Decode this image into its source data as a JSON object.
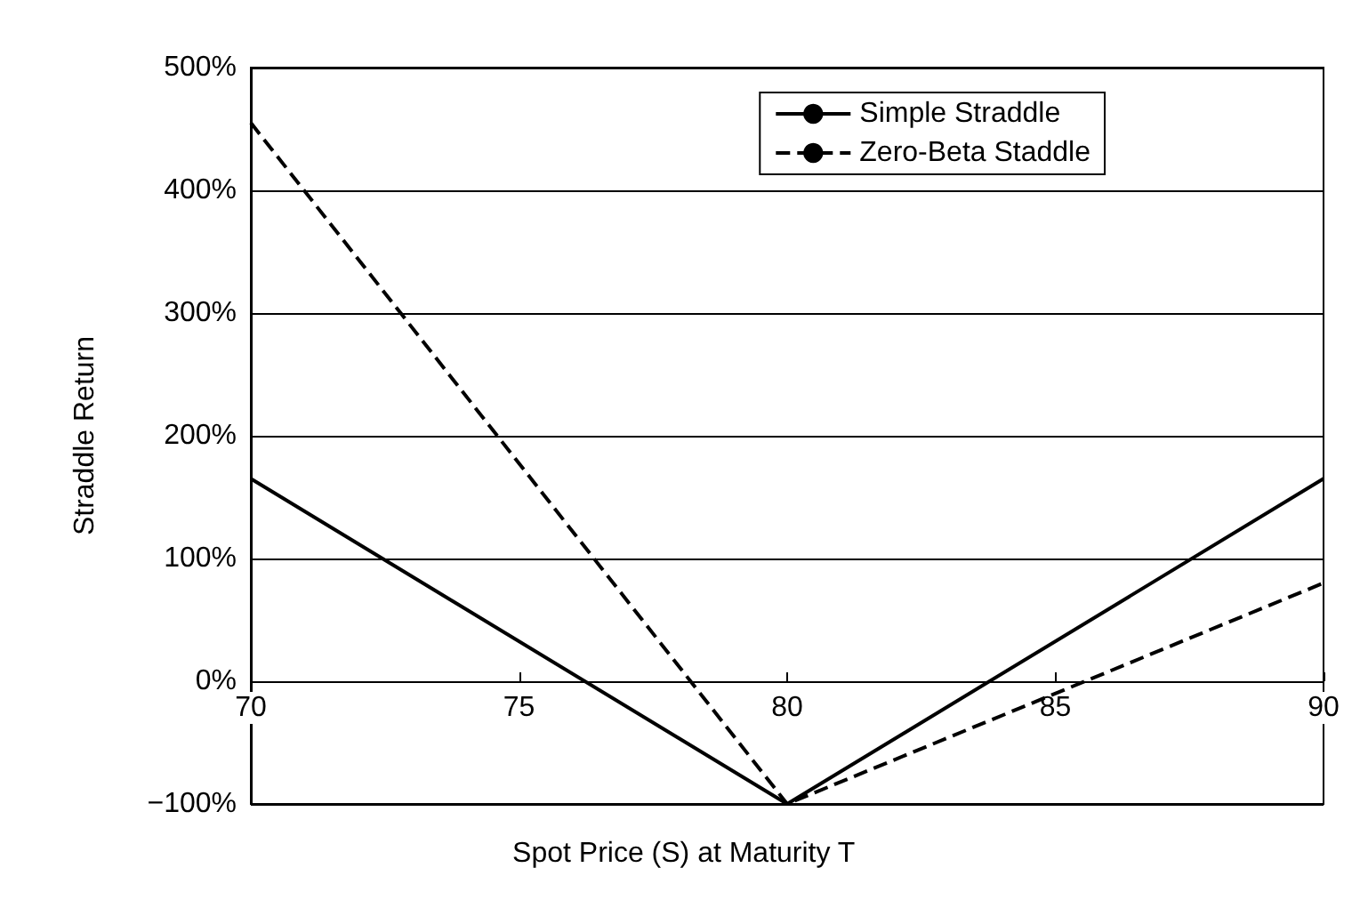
{
  "chart_data": {
    "type": "line",
    "xlabel": "Spot Price (S) at Maturity T",
    "ylabel": "Straddle Return",
    "series": [
      {
        "name": "Simple Straddle",
        "color": "#000000",
        "line_style": "solid",
        "x": [
          70,
          80,
          90
        ],
        "values": [
          165,
          -100,
          165
        ]
      },
      {
        "name": "Zero-Beta Staddle",
        "color": "#000000",
        "line_style": "dashed",
        "x": [
          70,
          80,
          90
        ],
        "values": [
          455,
          -100,
          80
        ]
      }
    ],
    "xlim": [
      70,
      90
    ],
    "xticks": [
      70,
      75,
      80,
      85,
      90
    ],
    "ylim": [
      -100,
      500
    ],
    "yticks": [
      {
        "value": -100,
        "label": "−100%"
      },
      {
        "value": 0,
        "label": "0%"
      },
      {
        "value": 100,
        "label": "100%"
      },
      {
        "value": 200,
        "label": "200%"
      },
      {
        "value": 300,
        "label": "300%"
      },
      {
        "value": 400,
        "label": "400%"
      },
      {
        "value": 500,
        "label": "500%"
      }
    ],
    "grid": "y",
    "legend": "top right",
    "marker": "none"
  }
}
